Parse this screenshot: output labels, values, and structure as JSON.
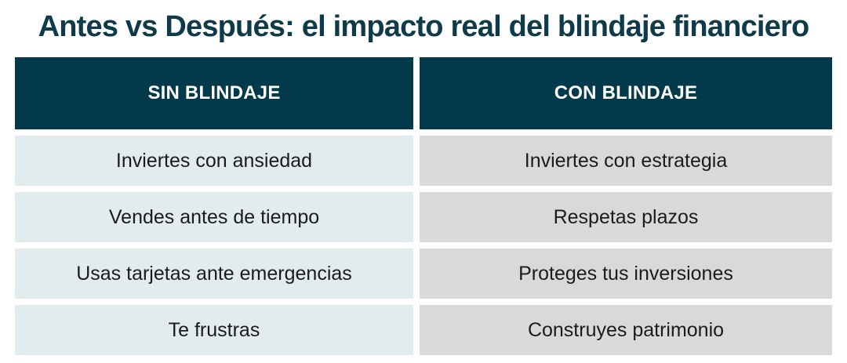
{
  "title": "Antes vs Después: el impacto real del blindaje financiero",
  "table": {
    "headers": [
      "SIN BLINDAJE",
      "CON BLINDAJE"
    ],
    "rows": [
      [
        "Inviertes con ansiedad",
        "Inviertes con estrategia"
      ],
      [
        "Vendes antes de tiempo",
        "Respetas plazos"
      ],
      [
        "Usas tarjetas ante emergencias",
        "Proteges tus inversiones"
      ],
      [
        "Te frustras",
        "Construyes patrimonio"
      ]
    ]
  },
  "colors": {
    "title": "#0e3a4a",
    "header_bg": "#033a4b",
    "header_text": "#ffffff",
    "left_cell_bg": "#e2ebee",
    "right_cell_bg": "#d9d9d9"
  }
}
